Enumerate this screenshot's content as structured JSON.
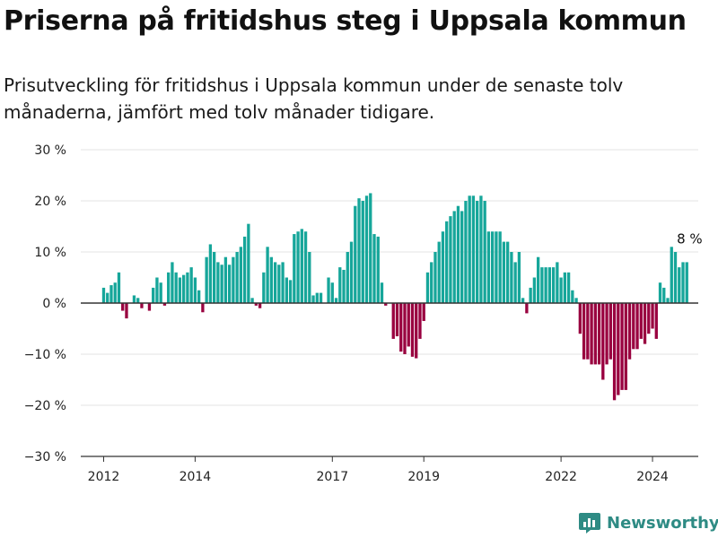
{
  "header": {
    "title": "Priserna på fritidshus steg i Uppsala kommun",
    "subtitle": "Prisutveckling för fritidshus i Uppsala kommun under de senaste tolv månaderna, jämfört med tolv månader tidigare."
  },
  "brand": {
    "label": "Newsworthy",
    "icon": "newsworthy-logo-icon"
  },
  "colors": {
    "positive": "#16a69a",
    "negative": "#99003f",
    "zero_line": "#333333",
    "grid": "#e3e3e3"
  },
  "chart_data": {
    "type": "bar",
    "title": "Priserna på fritidshus steg i Uppsala kommun",
    "xlabel": "",
    "ylabel": "",
    "ylim": [
      -30,
      30
    ],
    "yticks": [
      30,
      20,
      10,
      0,
      -10,
      -20,
      -30
    ],
    "ytick_labels": [
      "30 %",
      "20 %",
      "10 %",
      "0 %",
      "−10 %",
      "−20 %",
      "−30 %"
    ],
    "xticks": [
      2012,
      2014,
      2017,
      2019,
      2022,
      2024
    ],
    "xlim": [
      2011.5,
      2025.0
    ],
    "grid": true,
    "annotation": {
      "text": "8 %",
      "x": 2024.85,
      "y": 8
    },
    "start_year": 2012.0,
    "step_years": 0.083333,
    "values": [
      3,
      2,
      3.5,
      4,
      6,
      -1.5,
      -3,
      0,
      1.5,
      1,
      -1,
      0,
      -1.5,
      3,
      5,
      4,
      -0.5,
      6,
      8,
      6,
      5,
      5.5,
      6,
      7,
      5,
      2.5,
      -1.8,
      9,
      11.5,
      10,
      8,
      7.5,
      9,
      7.5,
      9,
      10,
      11,
      13,
      15.5,
      1,
      -0.5,
      -1,
      6,
      11,
      9,
      8,
      7.5,
      8,
      5,
      4.5,
      13.5,
      14,
      14.5,
      14,
      10,
      1.5,
      2,
      2,
      0,
      5,
      4,
      1,
      7,
      6.5,
      10,
      12,
      19,
      20.5,
      20,
      21,
      21.5,
      13.5,
      13,
      4,
      -0.5,
      0,
      -7,
      -6.5,
      -9.5,
      -10,
      -8.5,
      -10.5,
      -10.8,
      -7,
      -3.5,
      6,
      8,
      10,
      12,
      14,
      16,
      17,
      18,
      19,
      18,
      20,
      21,
      21,
      20,
      21,
      20,
      14,
      14,
      14,
      14,
      12,
      12,
      10,
      8,
      10,
      1,
      -2,
      3,
      5,
      9,
      7,
      7,
      7,
      7,
      8,
      5,
      6,
      6,
      2.5,
      1,
      -6,
      -11,
      -11,
      -12,
      -12,
      -12,
      -15,
      -12,
      -11,
      -19,
      -18,
      -17,
      -17,
      -11,
      -9,
      -9,
      -7,
      -8,
      -6,
      -5,
      -7,
      4,
      3,
      1,
      11,
      10,
      7,
      8,
      8
    ]
  }
}
